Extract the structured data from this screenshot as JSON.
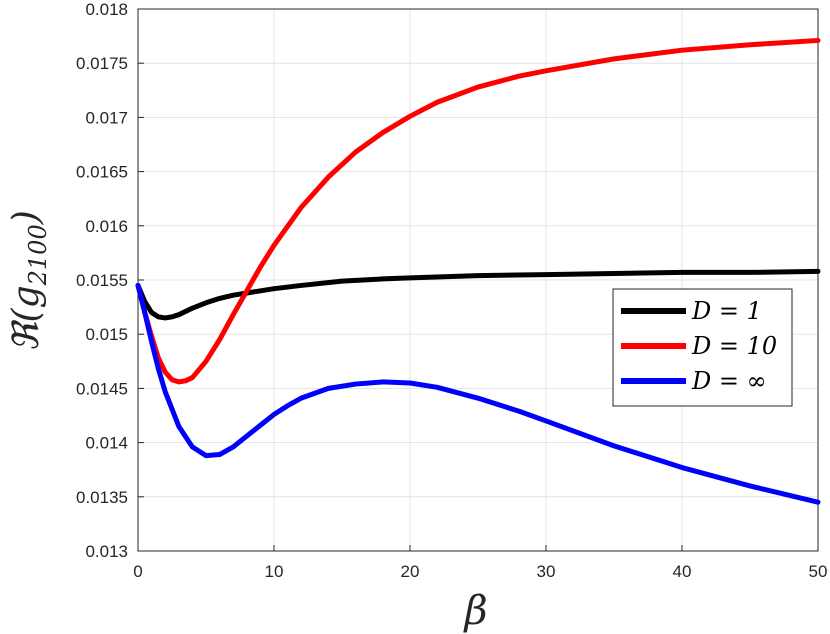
{
  "chart_data": {
    "type": "line",
    "title": "",
    "xlabel": "β",
    "ylabel": "ℜ(g",
    "ylabel_sub": "2100",
    "ylabel_close": ")",
    "xlim": [
      0,
      50
    ],
    "ylim": [
      0.013,
      0.018
    ],
    "xticks": [
      "0",
      "10",
      "20",
      "30",
      "40",
      "50"
    ],
    "yticks": [
      "0.013",
      "0.0135",
      "0.014",
      "0.0145",
      "0.015",
      "0.0155",
      "0.016",
      "0.0165",
      "0.017",
      "0.0175",
      "0.018"
    ],
    "grid": true,
    "legend_position": "center-right",
    "series": [
      {
        "name": "D = 1",
        "color": "#000000",
        "x": [
          0,
          0.5,
          1,
          1.5,
          2,
          2.5,
          3,
          4,
          5,
          6,
          7,
          8,
          10,
          12,
          15,
          18,
          20,
          25,
          30,
          35,
          40,
          45,
          50
        ],
        "y": [
          0.01545,
          0.0153,
          0.0152,
          0.01516,
          0.01515,
          0.01516,
          0.01518,
          0.01524,
          0.01529,
          0.01533,
          0.01536,
          0.01538,
          0.01542,
          0.01545,
          0.01549,
          0.01551,
          0.01552,
          0.01554,
          0.01555,
          0.01556,
          0.01557,
          0.01557,
          0.01558
        ]
      },
      {
        "name": "D = 10",
        "color": "#ff0000",
        "x": [
          0,
          0.5,
          1,
          1.5,
          2,
          2.5,
          3,
          3.5,
          4,
          5,
          6,
          7,
          8,
          9,
          10,
          12,
          14,
          16,
          18,
          20,
          22,
          25,
          28,
          30,
          35,
          40,
          45,
          50
        ],
        "y": [
          0.01545,
          0.0152,
          0.01498,
          0.01478,
          0.01465,
          0.01458,
          0.01456,
          0.01457,
          0.0146,
          0.01475,
          0.01495,
          0.01518,
          0.0154,
          0.01562,
          0.01582,
          0.01617,
          0.01645,
          0.01668,
          0.01686,
          0.01701,
          0.01714,
          0.01728,
          0.01738,
          0.01743,
          0.01754,
          0.01762,
          0.01767,
          0.01771
        ]
      },
      {
        "name": "D = ∞",
        "color": "#0000ff",
        "x": [
          0,
          0.5,
          1,
          1.5,
          2,
          3,
          4,
          5,
          6,
          7,
          8,
          9,
          10,
          11,
          12,
          14,
          16,
          18,
          20,
          22,
          25,
          28,
          30,
          35,
          40,
          45,
          50
        ],
        "y": [
          0.01545,
          0.0152,
          0.01493,
          0.01468,
          0.01447,
          0.01415,
          0.01396,
          0.01388,
          0.01389,
          0.01396,
          0.01406,
          0.01416,
          0.01426,
          0.01434,
          0.01441,
          0.0145,
          0.01454,
          0.01456,
          0.01455,
          0.01451,
          0.01441,
          0.01429,
          0.0142,
          0.01397,
          0.01377,
          0.0136,
          0.01345
        ]
      }
    ]
  }
}
